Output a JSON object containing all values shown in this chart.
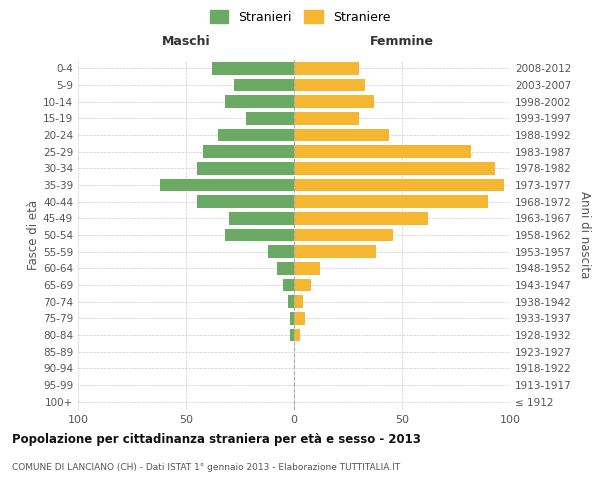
{
  "age_groups": [
    "100+",
    "95-99",
    "90-94",
    "85-89",
    "80-84",
    "75-79",
    "70-74",
    "65-69",
    "60-64",
    "55-59",
    "50-54",
    "45-49",
    "40-44",
    "35-39",
    "30-34",
    "25-29",
    "20-24",
    "15-19",
    "10-14",
    "5-9",
    "0-4"
  ],
  "birth_years": [
    "≤ 1912",
    "1913-1917",
    "1918-1922",
    "1923-1927",
    "1928-1932",
    "1933-1937",
    "1938-1942",
    "1943-1947",
    "1948-1952",
    "1953-1957",
    "1958-1962",
    "1963-1967",
    "1968-1972",
    "1973-1977",
    "1978-1982",
    "1983-1987",
    "1988-1992",
    "1993-1997",
    "1998-2002",
    "2003-2007",
    "2008-2012"
  ],
  "maschi": [
    0,
    0,
    0,
    0,
    2,
    2,
    3,
    5,
    8,
    12,
    32,
    30,
    45,
    62,
    45,
    42,
    35,
    22,
    32,
    28,
    38
  ],
  "femmine": [
    0,
    0,
    0,
    0,
    3,
    5,
    4,
    8,
    12,
    38,
    46,
    62,
    90,
    97,
    93,
    82,
    44,
    30,
    37,
    33,
    30
  ],
  "color_maschi": "#6aaa64",
  "color_femmine": "#f5b731",
  "xlim": 100,
  "title": "Popolazione per cittadinanza straniera per età e sesso - 2013",
  "subtitle": "COMUNE DI LANCIANO (CH) - Dati ISTAT 1° gennaio 2013 - Elaborazione TUTTITALIA.IT",
  "ylabel_left": "Fasce di età",
  "ylabel_right": "Anni di nascita",
  "label_maschi": "Stranieri",
  "label_femmine": "Straniere",
  "header_left": "Maschi",
  "header_right": "Femmine",
  "bg_color": "#ffffff",
  "grid_color": "#cccccc"
}
